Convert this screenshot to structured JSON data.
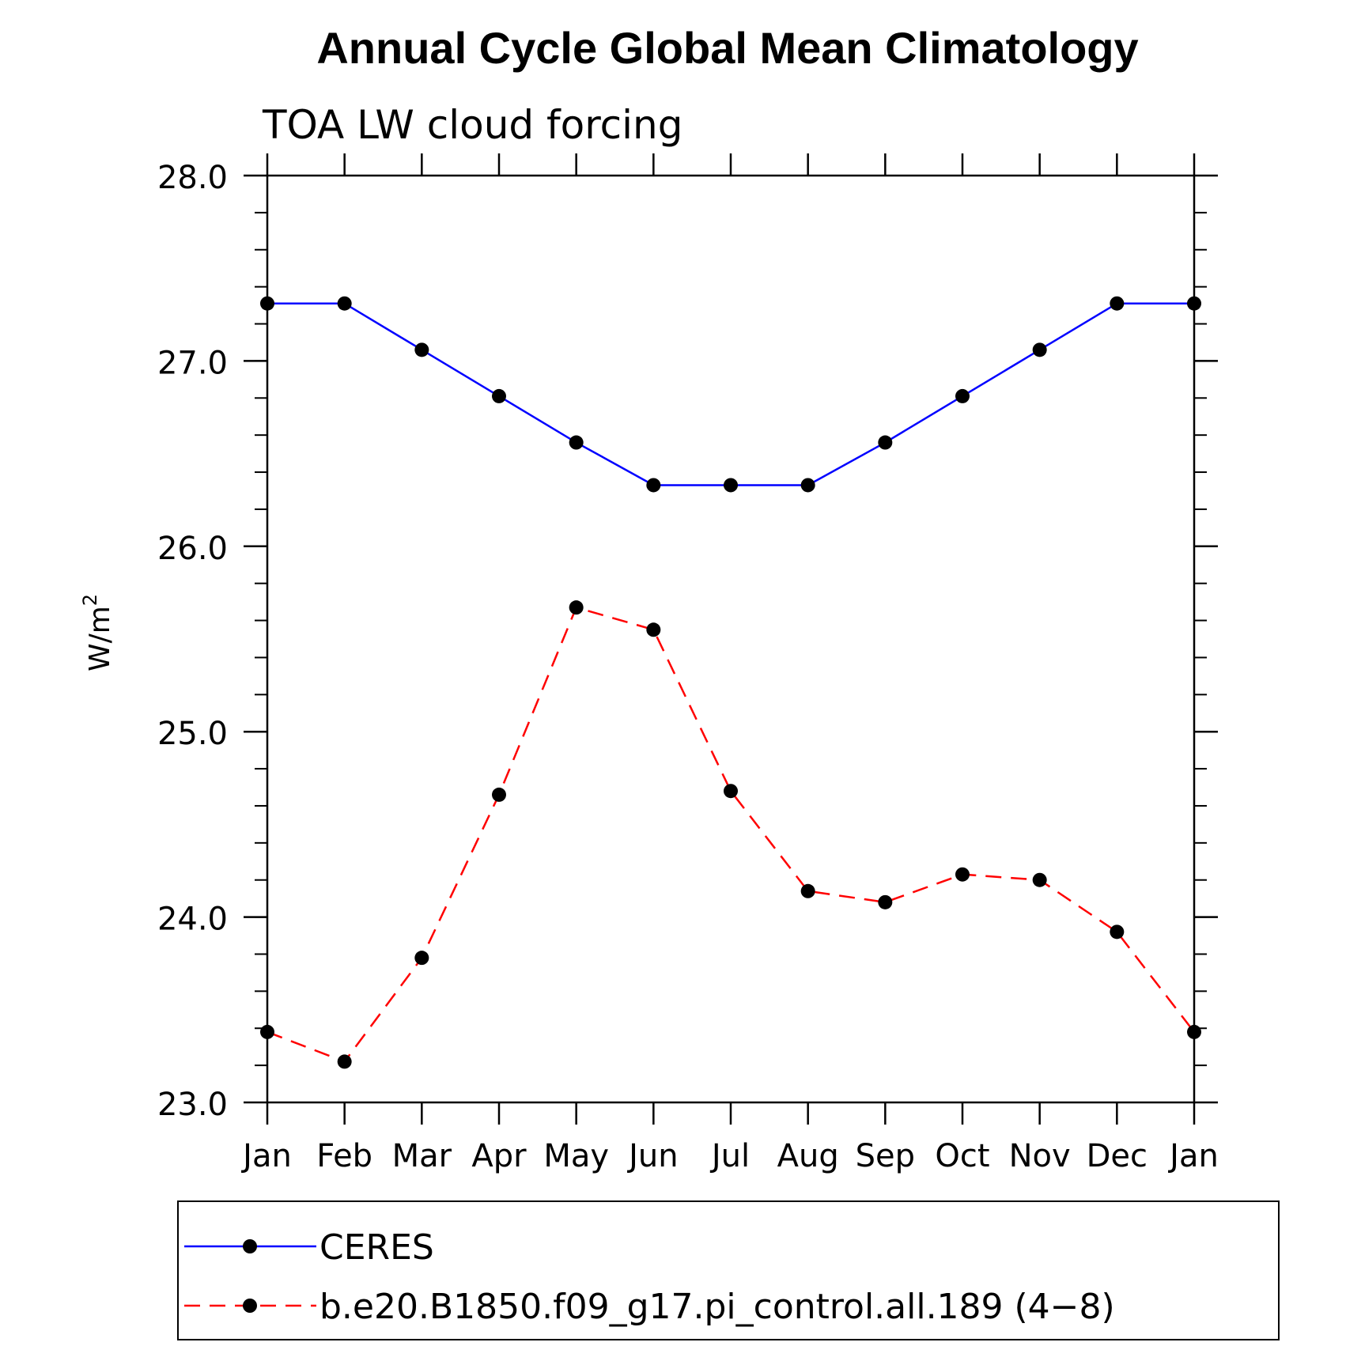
{
  "chart_data": {
    "type": "line",
    "title": "Annual Cycle Global Mean Climatology",
    "subtitle": "TOA LW cloud forcing",
    "xlabel": "",
    "ylabel": "W/m",
    "ylabel_superscript": "2",
    "categories": [
      "Jan",
      "Feb",
      "Mar",
      "Apr",
      "May",
      "Jun",
      "Jul",
      "Aug",
      "Sep",
      "Oct",
      "Nov",
      "Dec",
      "Jan"
    ],
    "ylim": [
      23.0,
      28.0
    ],
    "yticks": [
      "23.0",
      "24.0",
      "25.0",
      "26.0",
      "27.0",
      "28.0"
    ],
    "ytick_values": [
      23.0,
      24.0,
      25.0,
      26.0,
      27.0,
      28.0
    ],
    "y_minor_step": 0.2,
    "grid": false,
    "legend_position": "bottom",
    "series": [
      {
        "name": "CERES",
        "color": "#0000ff",
        "dash": "solid",
        "marker": "circle",
        "values": [
          27.31,
          27.31,
          27.06,
          26.81,
          26.56,
          26.33,
          26.33,
          26.33,
          26.56,
          26.81,
          27.06,
          27.31,
          27.31
        ]
      },
      {
        "name": "b.e20.B1850.f09_g17.pi_control.all.189 (4−8)",
        "color": "#ff0000",
        "dash": "dashed",
        "marker": "circle",
        "values": [
          23.38,
          23.22,
          23.78,
          24.66,
          25.67,
          25.55,
          24.68,
          24.14,
          24.08,
          24.23,
          24.2,
          23.92,
          23.38
        ]
      }
    ]
  }
}
